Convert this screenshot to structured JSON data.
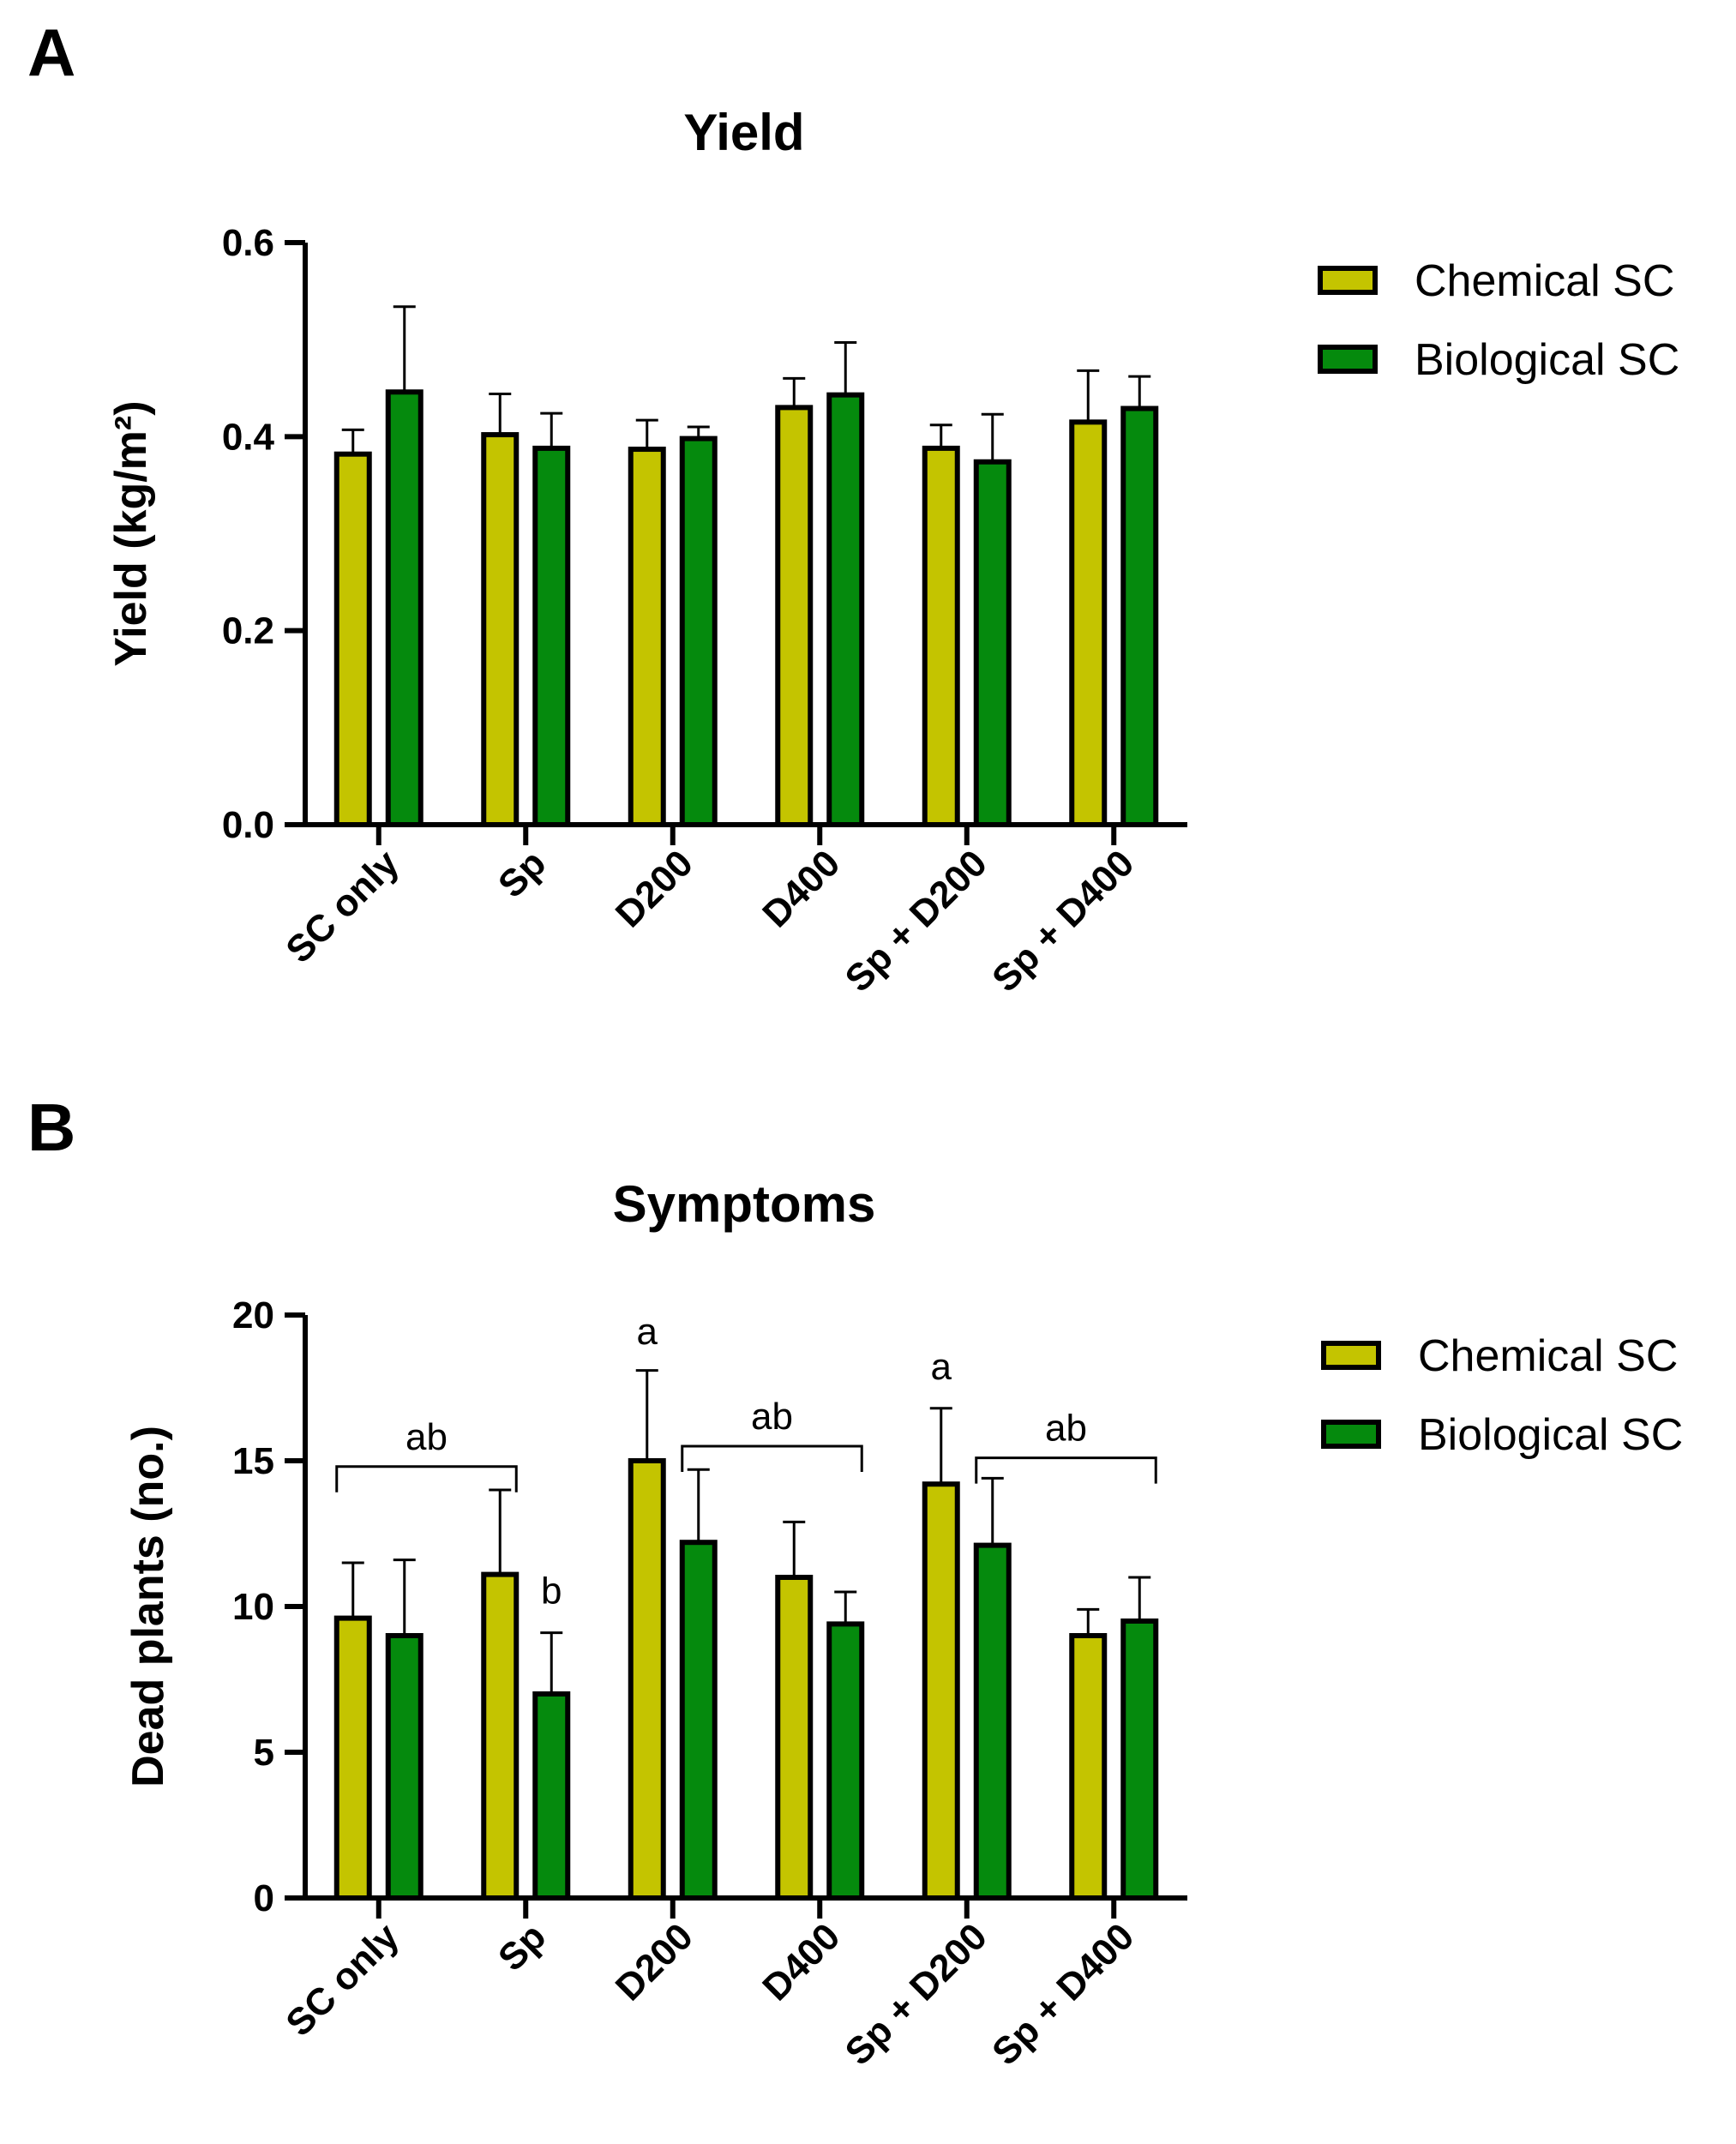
{
  "colors": {
    "chemical": "#c4c400",
    "biological": "#058a0d",
    "stroke": "#000000"
  },
  "chart_data": [
    {
      "panel": "A",
      "type": "bar",
      "title": "Yield",
      "ylabel": "Yield (kg/m²)",
      "xlabel": "",
      "ylim": [
        0,
        0.6
      ],
      "yticks": [
        0.0,
        0.2,
        0.4,
        0.6
      ],
      "ytick_labels": [
        "0.0",
        "0.2",
        "0.4",
        "0.6"
      ],
      "categories": [
        "SC only",
        "Sp",
        "D200",
        "D400",
        "Sp + D200",
        "Sp + D400"
      ],
      "legend_position": "right",
      "series": [
        {
          "name": "Chemical SC",
          "values": [
            0.382,
            0.402,
            0.387,
            0.43,
            0.388,
            0.415
          ],
          "errors": [
            0.025,
            0.042,
            0.03,
            0.03,
            0.024,
            0.053
          ]
        },
        {
          "name": "Biological SC",
          "values": [
            0.446,
            0.388,
            0.398,
            0.443,
            0.374,
            0.429
          ],
          "errors": [
            0.088,
            0.036,
            0.012,
            0.054,
            0.049,
            0.033
          ]
        }
      ],
      "annotations": []
    },
    {
      "panel": "B",
      "type": "bar",
      "title": "Symptoms",
      "ylabel": "Dead plants (no.)",
      "xlabel": "",
      "ylim": [
        0,
        20
      ],
      "yticks": [
        0,
        5,
        10,
        15,
        20
      ],
      "ytick_labels": [
        "0",
        "5",
        "10",
        "15",
        "20"
      ],
      "categories": [
        "SC only",
        "Sp",
        "D200",
        "D400",
        "Sp + D200",
        "Sp + D400"
      ],
      "legend_position": "right",
      "series": [
        {
          "name": "Chemical SC",
          "values": [
            9.6,
            11.1,
            15.0,
            11.0,
            14.2,
            9.0
          ],
          "errors": [
            1.9,
            2.9,
            3.1,
            1.9,
            2.6,
            0.9
          ]
        },
        {
          "name": "Biological SC",
          "values": [
            9.0,
            7.0,
            12.2,
            9.4,
            12.1,
            9.5
          ],
          "errors": [
            2.6,
            2.1,
            2.5,
            1.1,
            2.3,
            1.5
          ]
        }
      ],
      "annotations": [
        {
          "text": "ab",
          "type": "bracket",
          "from": [
            0,
            0
          ],
          "to": [
            1,
            0
          ],
          "y": 14.8
        },
        {
          "text": "b",
          "type": "label",
          "category": 1,
          "series": 1,
          "y": 10.1
        },
        {
          "text": "a",
          "type": "label",
          "category": 2,
          "series": 0,
          "y": 19.0
        },
        {
          "text": "ab",
          "type": "bracket",
          "from": [
            2,
            1
          ],
          "to": [
            3,
            1
          ],
          "y": 15.5
        },
        {
          "text": "a",
          "type": "label",
          "category": 4,
          "series": 0,
          "y": 17.8
        },
        {
          "text": "ab",
          "type": "bracket",
          "from": [
            4,
            1
          ],
          "to": [
            5,
            1
          ],
          "y": 15.1
        }
      ]
    }
  ]
}
